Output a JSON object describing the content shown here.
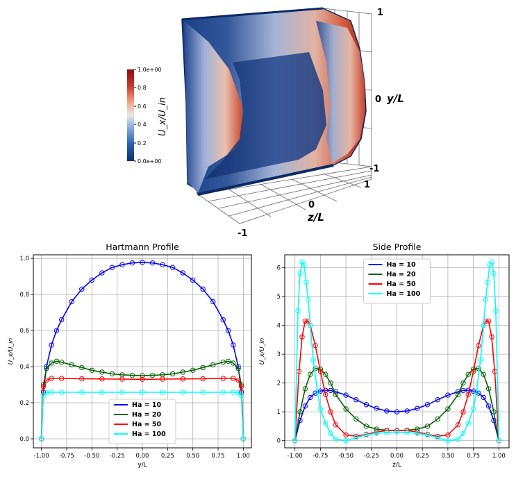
{
  "render3d": {
    "colorbar": {
      "label": "U_x/U_in",
      "ticks": [
        "1.0e+00",
        "0.8",
        "0.6",
        "0.4",
        "0.2",
        "0.0e+00"
      ],
      "colors": [
        "#08306b",
        "#2b5fad",
        "#8db3e2",
        "#e9e9e9",
        "#f2a183",
        "#c73a2d",
        "#8b0d12"
      ]
    },
    "axes": {
      "y_label": "y/L",
      "y_ticks": [
        "1",
        "0",
        "-1"
      ],
      "z_label": "z/L",
      "z_ticks": [
        "1",
        "0",
        "-1"
      ]
    }
  },
  "chart_data": [
    {
      "type": "line",
      "title": "Hartmann Profile",
      "xlabel": "y/L",
      "ylabel": "U_x/U_in",
      "xlim": [
        -1.08,
        1.08
      ],
      "ylim": [
        -0.05,
        1.02
      ],
      "xticks": [
        "-1.00",
        "-0.75",
        "-0.50",
        "-0.25",
        "0.00",
        "0.25",
        "0.50",
        "0.75",
        "1.00"
      ],
      "yticks": [
        "0.0",
        "0.2",
        "0.4",
        "0.6",
        "0.8",
        "1.0"
      ],
      "grid": true,
      "legend": "bottom-center",
      "series": [
        {
          "name": "Ha = 10",
          "color": "#0000ff",
          "x": [
            -1.0,
            -0.98,
            -0.95,
            -0.9,
            -0.85,
            -0.8,
            -0.7,
            -0.6,
            -0.5,
            -0.4,
            -0.3,
            -0.2,
            -0.1,
            0.0,
            0.1,
            0.2,
            0.3,
            0.4,
            0.5,
            0.6,
            0.7,
            0.8,
            0.85,
            0.9,
            0.95,
            0.98,
            1.0
          ],
          "y": [
            0.0,
            0.26,
            0.4,
            0.52,
            0.6,
            0.66,
            0.76,
            0.83,
            0.88,
            0.92,
            0.95,
            0.965,
            0.975,
            0.978,
            0.975,
            0.965,
            0.95,
            0.92,
            0.88,
            0.83,
            0.76,
            0.66,
            0.6,
            0.52,
            0.4,
            0.26,
            0.0
          ]
        },
        {
          "name": "Ha = 20",
          "color": "#006400",
          "x": [
            -1.0,
            -0.98,
            -0.95,
            -0.9,
            -0.85,
            -0.8,
            -0.7,
            -0.6,
            -0.5,
            -0.4,
            -0.3,
            -0.2,
            -0.1,
            0.0,
            0.1,
            0.2,
            0.3,
            0.4,
            0.5,
            0.6,
            0.7,
            0.8,
            0.85,
            0.9,
            0.95,
            0.98,
            1.0
          ],
          "y": [
            0.0,
            0.3,
            0.39,
            0.42,
            0.43,
            0.425,
            0.41,
            0.395,
            0.38,
            0.37,
            0.36,
            0.355,
            0.352,
            0.35,
            0.352,
            0.355,
            0.36,
            0.37,
            0.38,
            0.395,
            0.41,
            0.425,
            0.43,
            0.42,
            0.39,
            0.3,
            0.0
          ]
        },
        {
          "name": "Ha = 50",
          "color": "#ff0000",
          "x": [
            -1.0,
            -0.98,
            -0.95,
            -0.9,
            -0.8,
            -0.6,
            -0.4,
            -0.2,
            0.0,
            0.2,
            0.4,
            0.6,
            0.8,
            0.9,
            0.95,
            0.98,
            1.0
          ],
          "y": [
            0.0,
            0.29,
            0.325,
            0.335,
            0.335,
            0.333,
            0.332,
            0.331,
            0.33,
            0.331,
            0.332,
            0.333,
            0.335,
            0.335,
            0.325,
            0.29,
            0.0
          ]
        },
        {
          "name": "Ha = 100",
          "color": "#00ffff",
          "x": [
            -1.0,
            -0.98,
            -0.95,
            -0.9,
            -0.8,
            -0.6,
            -0.4,
            -0.2,
            0.0,
            0.2,
            0.4,
            0.6,
            0.8,
            0.9,
            0.95,
            0.98,
            1.0
          ],
          "y": [
            0.0,
            0.24,
            0.255,
            0.258,
            0.258,
            0.258,
            0.258,
            0.258,
            0.258,
            0.258,
            0.258,
            0.258,
            0.258,
            0.258,
            0.255,
            0.24,
            0.0
          ]
        }
      ]
    },
    {
      "type": "line",
      "title": "Side Profile",
      "xlabel": "z/L",
      "ylabel": "U_x/U_in",
      "xlim": [
        -1.1,
        1.1
      ],
      "ylim": [
        -0.25,
        6.45
      ],
      "xticks": [
        "-1.00",
        "-0.75",
        "-0.50",
        "-0.25",
        "0.00",
        "0.25",
        "0.50",
        "0.75",
        "1.00"
      ],
      "yticks": [
        "0",
        "1",
        "2",
        "3",
        "4",
        "5",
        "6"
      ],
      "grid": true,
      "legend": "top-center",
      "series": [
        {
          "name": "Ha = 10",
          "color": "#0000ff",
          "x": [
            -1.0,
            -0.95,
            -0.9,
            -0.85,
            -0.8,
            -0.75,
            -0.7,
            -0.65,
            -0.6,
            -0.5,
            -0.4,
            -0.3,
            -0.2,
            -0.1,
            0.0,
            0.1,
            0.2,
            0.3,
            0.4,
            0.5,
            0.6,
            0.65,
            0.7,
            0.75,
            0.8,
            0.85,
            0.9,
            0.95,
            1.0
          ],
          "y": [
            0.0,
            0.7,
            1.2,
            1.5,
            1.65,
            1.72,
            1.75,
            1.74,
            1.7,
            1.58,
            1.42,
            1.25,
            1.12,
            1.03,
            1.0,
            1.03,
            1.12,
            1.25,
            1.42,
            1.58,
            1.7,
            1.74,
            1.75,
            1.72,
            1.65,
            1.5,
            1.2,
            0.7,
            0.0
          ]
        },
        {
          "name": "Ha = 20",
          "color": "#006400",
          "x": [
            -1.0,
            -0.95,
            -0.9,
            -0.85,
            -0.8,
            -0.75,
            -0.7,
            -0.65,
            -0.6,
            -0.5,
            -0.4,
            -0.3,
            -0.2,
            -0.1,
            0.0,
            0.1,
            0.2,
            0.3,
            0.4,
            0.5,
            0.6,
            0.65,
            0.7,
            0.75,
            0.8,
            0.85,
            0.9,
            0.95,
            1.0
          ],
          "y": [
            0.0,
            1.0,
            1.8,
            2.3,
            2.5,
            2.48,
            2.3,
            2.0,
            1.6,
            1.1,
            0.75,
            0.5,
            0.4,
            0.36,
            0.35,
            0.36,
            0.4,
            0.5,
            0.75,
            1.1,
            1.6,
            2.0,
            2.3,
            2.48,
            2.5,
            2.3,
            1.8,
            1.0,
            0.0
          ]
        },
        {
          "name": "Ha = 50",
          "color": "#ff0000",
          "x": [
            -1.0,
            -0.96,
            -0.93,
            -0.9,
            -0.87,
            -0.85,
            -0.8,
            -0.75,
            -0.7,
            -0.65,
            -0.6,
            -0.5,
            -0.4,
            -0.3,
            -0.2,
            -0.1,
            0.0,
            0.1,
            0.2,
            0.3,
            0.4,
            0.5,
            0.6,
            0.65,
            0.7,
            0.75,
            0.8,
            0.85,
            0.87,
            0.9,
            0.93,
            0.96,
            1.0
          ],
          "y": [
            0.0,
            2.4,
            3.6,
            4.15,
            4.15,
            4.0,
            3.3,
            2.4,
            1.6,
            1.0,
            0.55,
            0.2,
            0.15,
            0.22,
            0.3,
            0.35,
            0.35,
            0.35,
            0.3,
            0.22,
            0.15,
            0.2,
            0.55,
            1.0,
            1.6,
            2.4,
            3.3,
            4.0,
            4.15,
            4.15,
            3.6,
            2.4,
            0.0
          ]
        },
        {
          "name": "Ha = 100",
          "color": "#00ffff",
          "x": [
            -1.0,
            -0.97,
            -0.95,
            -0.93,
            -0.91,
            -0.89,
            -0.87,
            -0.85,
            -0.82,
            -0.78,
            -0.75,
            -0.7,
            -0.65,
            -0.6,
            -0.5,
            -0.4,
            -0.3,
            -0.2,
            -0.1,
            0.0,
            0.1,
            0.2,
            0.3,
            0.4,
            0.5,
            0.6,
            0.65,
            0.7,
            0.75,
            0.78,
            0.82,
            0.85,
            0.87,
            0.89,
            0.91,
            0.93,
            0.95,
            0.97,
            1.0
          ],
          "y": [
            0.0,
            4.5,
            5.8,
            6.2,
            6.1,
            5.5,
            4.9,
            4.0,
            2.8,
            1.7,
            1.1,
            0.6,
            0.25,
            0.05,
            0.0,
            0.1,
            0.2,
            0.25,
            0.28,
            0.3,
            0.28,
            0.25,
            0.2,
            0.1,
            0.0,
            0.05,
            0.25,
            0.6,
            1.1,
            1.7,
            2.8,
            4.0,
            4.9,
            5.5,
            6.1,
            6.2,
            5.8,
            4.5,
            0.0
          ]
        }
      ]
    }
  ]
}
